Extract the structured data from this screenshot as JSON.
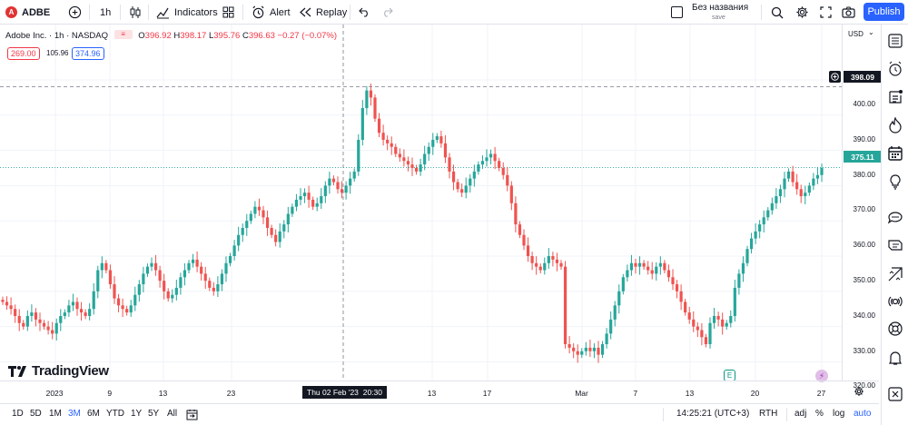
{
  "topbar": {
    "symbol": "ADBE",
    "interval": "1h",
    "indicators_label": "Indicators",
    "alert_label": "Alert",
    "replay_label": "Replay",
    "layout_name": "Без названия",
    "layout_status": "save",
    "publish_label": "Publish"
  },
  "legend": {
    "title": "Adobe Inc. · 1h · NASDAQ",
    "o_label": "O",
    "o": "396.92",
    "h_label": "H",
    "h": "398.17",
    "l_label": "L",
    "l": "395.76",
    "c_label": "C",
    "c": "396.63",
    "change": "−0.27 (−0.07%)",
    "bid": "269.00",
    "spread": "105.96",
    "ask": "374.96"
  },
  "price_scale": {
    "currency": "USD",
    "labels": [
      "400.00",
      "390.00",
      "380.00",
      "370.00",
      "360.00",
      "350.00",
      "340.00",
      "330.00",
      "320.00"
    ],
    "crosshair_price": "398.09",
    "last_price": "375.11"
  },
  "time_scale": {
    "labels": [
      "2023",
      "9",
      "13",
      "23",
      "13",
      "17",
      "Mar",
      "7",
      "13",
      "20",
      "27"
    ],
    "crosshair_time": "Thu 02 Feb '23",
    "crosshair_hour": "20:30"
  },
  "chart_data": {
    "type": "candlestick",
    "symbol": "ADBE",
    "interval": "1h",
    "ylim": [
      315,
      403
    ],
    "y_ticks": [
      320,
      330,
      340,
      350,
      360,
      370,
      380,
      390,
      400
    ],
    "closes": [
      337,
      336,
      335,
      333,
      331,
      330,
      333,
      334,
      332,
      331,
      330,
      329,
      328,
      331,
      333,
      334,
      336,
      337,
      335,
      334,
      333,
      335,
      340,
      346,
      348,
      346,
      342,
      338,
      336,
      335,
      334,
      336,
      339,
      342,
      345,
      347,
      348,
      346,
      343,
      340,
      338,
      339,
      341,
      344,
      346,
      348,
      349,
      347,
      345,
      343,
      341,
      340,
      342,
      345,
      348,
      350,
      353,
      356,
      358,
      360,
      362,
      364,
      363,
      361,
      358,
      356,
      354,
      357,
      359,
      362,
      364,
      366,
      367,
      368,
      366,
      364,
      365,
      367,
      370,
      372,
      371,
      369,
      368,
      370,
      372,
      374,
      383,
      392,
      397,
      395,
      389,
      385,
      383,
      382,
      381,
      379,
      378,
      377,
      376,
      375,
      374,
      376,
      379,
      381,
      383,
      384,
      382,
      378,
      374,
      371,
      369,
      368,
      370,
      372,
      374,
      376,
      377,
      378,
      379,
      377,
      375,
      373,
      370,
      365,
      359,
      356,
      353,
      350,
      348,
      347,
      346,
      348,
      350,
      349,
      348,
      347,
      325,
      324,
      323,
      322,
      323,
      324,
      323,
      324,
      322,
      325,
      328,
      332,
      336,
      340,
      344,
      346,
      348,
      347,
      348,
      347,
      346,
      345,
      347,
      348,
      346,
      344,
      342,
      340,
      337,
      334,
      332,
      330,
      329,
      327,
      325,
      331,
      333,
      332,
      330,
      331,
      333,
      341,
      345,
      348,
      352,
      355,
      357,
      359,
      361,
      363,
      365,
      367,
      369,
      372,
      374,
      371,
      369,
      367,
      368,
      370,
      372,
      373,
      375
    ]
  },
  "bottombar": {
    "ranges": [
      "1D",
      "5D",
      "1M",
      "3M",
      "6M",
      "YTD",
      "1Y",
      "5Y",
      "All"
    ],
    "active_range": "3M",
    "clock": "14:25:21 (UTC+3)",
    "session": "RTH",
    "adj_label": "adj",
    "pct_label": "%",
    "log_label": "log",
    "auto_label": "auto"
  },
  "watermark": "TradingView",
  "colors": {
    "up": "#26a69a",
    "down": "#ef5350",
    "accent": "#2962ff",
    "last_price": "#26a69a"
  }
}
